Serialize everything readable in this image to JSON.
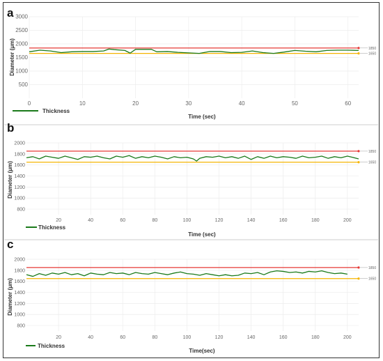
{
  "chart_data": [
    {
      "panel": "a",
      "type": "line",
      "xlabel": "Time (sec)",
      "ylabel": "Diameter (μm)",
      "xlim": [
        0,
        62
      ],
      "ylim": [
        0,
        3000
      ],
      "xticks": [
        0,
        10,
        20,
        30,
        40,
        50,
        60
      ],
      "yticks": [
        500,
        1000,
        1500,
        2000,
        2500,
        3000
      ],
      "reference_lines": [
        {
          "label": "1850",
          "value": 1850,
          "color": "#e53935"
        },
        {
          "label": "1650",
          "value": 1650,
          "color": "#f5b400"
        }
      ],
      "series": [
        {
          "name": "Thickness",
          "color": "#1a7a1a",
          "x": [
            0,
            2,
            4,
            6,
            8,
            10,
            12,
            14,
            15,
            16,
            18,
            19,
            20,
            23,
            24,
            26,
            28,
            30,
            32,
            34,
            36,
            38,
            40,
            42,
            44,
            46,
            48,
            50,
            52,
            54,
            56,
            58,
            60,
            62
          ],
          "y": [
            1710,
            1770,
            1740,
            1680,
            1710,
            1720,
            1720,
            1740,
            1810,
            1790,
            1760,
            1660,
            1800,
            1800,
            1710,
            1720,
            1690,
            1670,
            1650,
            1720,
            1720,
            1680,
            1690,
            1740,
            1680,
            1650,
            1700,
            1760,
            1730,
            1710,
            1760,
            1770,
            1770,
            1760
          ]
        }
      ]
    },
    {
      "panel": "b",
      "type": "line",
      "xlabel": "Time (sec)",
      "ylabel": "Diameter (μm)",
      "xlim": [
        0,
        207
      ],
      "ylim": [
        700,
        2000
      ],
      "xticks": [
        20,
        40,
        60,
        80,
        100,
        120,
        140,
        160,
        180,
        200
      ],
      "yticks": [
        800,
        1000,
        1200,
        1400,
        1600,
        1800,
        2000
      ],
      "reference_lines": [
        {
          "label": "1850",
          "value": 1850,
          "color": "#e53935"
        },
        {
          "label": "1650",
          "value": 1650,
          "color": "#f5b400"
        }
      ],
      "series": [
        {
          "name": "Thickness",
          "color": "#1a7a1a",
          "x": [
            0,
            4,
            8,
            12,
            16,
            20,
            24,
            28,
            32,
            36,
            40,
            44,
            48,
            52,
            56,
            60,
            64,
            68,
            72,
            76,
            80,
            84,
            88,
            92,
            96,
            100,
            104,
            106,
            108,
            112,
            116,
            120,
            124,
            128,
            132,
            136,
            140,
            144,
            148,
            152,
            156,
            160,
            164,
            168,
            172,
            176,
            180,
            184,
            188,
            192,
            196,
            200,
            203,
            207
          ],
          "y": [
            1730,
            1750,
            1710,
            1760,
            1740,
            1720,
            1760,
            1730,
            1700,
            1750,
            1740,
            1760,
            1730,
            1710,
            1760,
            1740,
            1770,
            1720,
            1750,
            1730,
            1760,
            1740,
            1710,
            1750,
            1730,
            1740,
            1710,
            1670,
            1720,
            1750,
            1740,
            1760,
            1730,
            1750,
            1720,
            1760,
            1700,
            1750,
            1720,
            1760,
            1730,
            1750,
            1740,
            1720,
            1760,
            1730,
            1740,
            1760,
            1720,
            1750,
            1730,
            1760,
            1740,
            1710
          ]
        }
      ]
    },
    {
      "panel": "c",
      "type": "line",
      "xlabel": "Time(sec)",
      "ylabel": "Diameter (μm)",
      "xlim": [
        0,
        207
      ],
      "ylim": [
        700,
        2000
      ],
      "xticks": [
        20,
        40,
        60,
        80,
        100,
        120,
        140,
        160,
        180,
        200
      ],
      "yticks": [
        800,
        1000,
        1200,
        1400,
        1600,
        1800,
        2000
      ],
      "reference_lines": [
        {
          "label": "1850",
          "value": 1850,
          "color": "#e53935"
        },
        {
          "label": "1650",
          "value": 1650,
          "color": "#f5b400"
        }
      ],
      "series": [
        {
          "name": "Thickness",
          "color": "#1a7a1a",
          "x": [
            0,
            4,
            8,
            12,
            16,
            20,
            24,
            28,
            32,
            36,
            40,
            44,
            48,
            52,
            56,
            60,
            64,
            68,
            72,
            76,
            80,
            84,
            88,
            92,
            96,
            100,
            104,
            108,
            112,
            116,
            120,
            124,
            128,
            132,
            136,
            140,
            144,
            148,
            152,
            156,
            160,
            164,
            168,
            172,
            176,
            180,
            184,
            188,
            192,
            196,
            200
          ],
          "y": [
            1720,
            1690,
            1740,
            1710,
            1750,
            1730,
            1760,
            1720,
            1740,
            1700,
            1750,
            1730,
            1720,
            1760,
            1740,
            1750,
            1720,
            1760,
            1740,
            1730,
            1760,
            1740,
            1720,
            1750,
            1770,
            1740,
            1730,
            1710,
            1740,
            1720,
            1700,
            1720,
            1700,
            1710,
            1750,
            1740,
            1760,
            1720,
            1770,
            1790,
            1780,
            1760,
            1770,
            1750,
            1780,
            1770,
            1790,
            1760,
            1740,
            1750,
            1730
          ]
        }
      ]
    }
  ]
}
